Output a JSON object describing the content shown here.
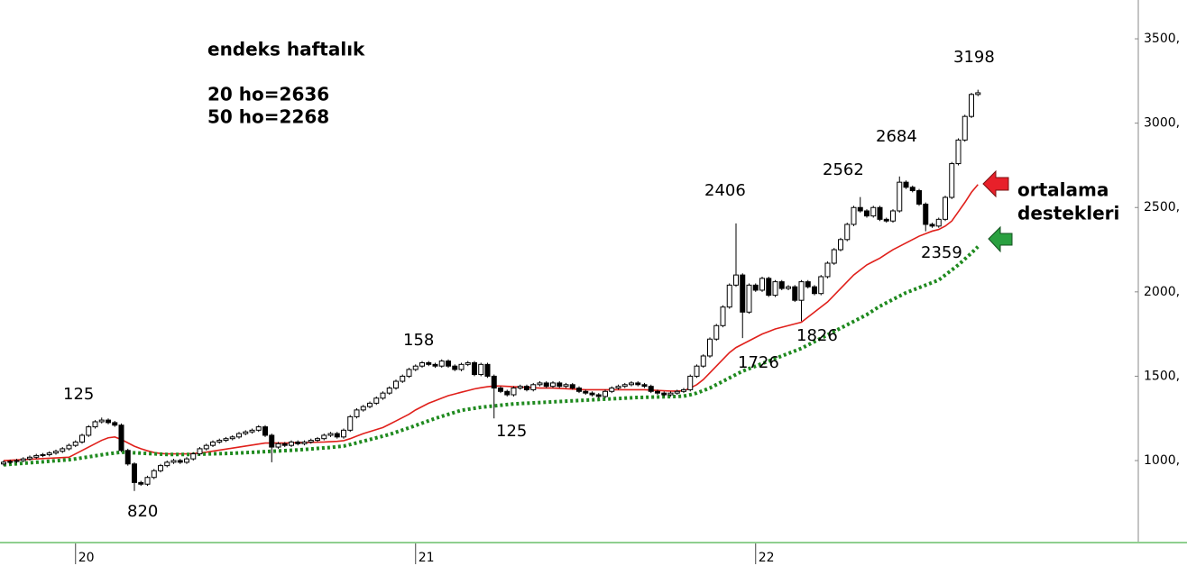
{
  "chart_data": {
    "type": "candlestick",
    "title": "endeks haftalık",
    "notes": [
      "20 ho=2636",
      "50 ho=2268"
    ],
    "side_label": [
      "ortalama",
      "destekleri"
    ],
    "annotations": [
      "125",
      "820",
      "158",
      "125",
      "2406",
      "1726",
      "1826",
      "2562",
      "2684",
      "2359",
      "3198"
    ],
    "categories": [
      null,
      null,
      null,
      null,
      null,
      null,
      null,
      null,
      null,
      null,
      null,
      "20",
      null,
      null,
      null,
      null,
      null,
      null,
      null,
      null,
      null,
      null,
      null,
      null,
      null,
      null,
      null,
      null,
      null,
      null,
      null,
      null,
      null,
      null,
      null,
      null,
      null,
      null,
      null,
      null,
      null,
      null,
      null,
      null,
      null,
      null,
      null,
      null,
      null,
      null,
      null,
      null,
      null,
      null,
      null,
      null,
      null,
      null,
      null,
      null,
      null,
      null,
      null,
      "21",
      null,
      null,
      null,
      null,
      null,
      null,
      null,
      null,
      null,
      null,
      null,
      null,
      null,
      null,
      null,
      null,
      null,
      null,
      null,
      null,
      null,
      null,
      null,
      null,
      null,
      null,
      null,
      null,
      null,
      null,
      null,
      null,
      null,
      null,
      null,
      null,
      null,
      null,
      null,
      null,
      null,
      null,
      null,
      null,
      null,
      null,
      null,
      null,
      null,
      null,
      null,
      "22",
      null,
      null,
      null,
      null,
      null,
      null,
      null,
      null,
      null,
      null,
      null,
      null,
      null,
      null,
      null,
      null,
      null,
      null,
      null,
      null,
      null,
      null,
      null,
      null,
      null,
      null,
      null,
      null,
      null,
      null,
      null,
      null,
      null,
      null
    ],
    "open": [
      980,
      990,
      995,
      1000,
      1010,
      1020,
      1030,
      1035,
      1045,
      1055,
      1070,
      1090,
      1110,
      1150,
      1200,
      1230,
      1240,
      1225,
      1210,
      1060,
      980,
      870,
      860,
      900,
      940,
      970,
      990,
      1000,
      990,
      1010,
      1040,
      1070,
      1090,
      1110,
      1120,
      1130,
      1140,
      1160,
      1170,
      1180,
      1200,
      1150,
      1080,
      1100,
      1090,
      1110,
      1100,
      1110,
      1120,
      1130,
      1150,
      1160,
      1140,
      1180,
      1260,
      1300,
      1320,
      1340,
      1370,
      1400,
      1430,
      1470,
      1500,
      1540,
      1560,
      1580,
      1570,
      1560,
      1590,
      1560,
      1540,
      1570,
      1580,
      1510,
      1570,
      1500,
      1430,
      1410,
      1390,
      1430,
      1440,
      1420,
      1450,
      1460,
      1440,
      1460,
      1440,
      1450,
      1430,
      1410,
      1400,
      1390,
      1380,
      1410,
      1430,
      1440,
      1450,
      1460,
      1450,
      1440,
      1410,
      1400,
      1390,
      1400,
      1410,
      1420,
      1500,
      1560,
      1620,
      1720,
      1800,
      1910,
      2040,
      2100,
      1880,
      2040,
      2010,
      2080,
      1980,
      2060,
      2020,
      2030,
      1950,
      2060,
      2030,
      1990,
      2090,
      2170,
      2250,
      2310,
      2400,
      2500,
      2480,
      2450,
      2500,
      2430,
      2420,
      2480,
      2650,
      2620,
      2600,
      2520,
      2400,
      2390,
      2430,
      2560,
      2760,
      2900,
      3040,
      3170
    ],
    "high": [
      1000,
      1005,
      1010,
      1020,
      1030,
      1040,
      1045,
      1055,
      1065,
      1080,
      1100,
      1120,
      1160,
      1210,
      1240,
      1255,
      1250,
      1235,
      1220,
      1070,
      990,
      880,
      910,
      950,
      980,
      1000,
      1010,
      1010,
      1020,
      1050,
      1080,
      1100,
      1120,
      1130,
      1140,
      1150,
      1170,
      1180,
      1190,
      1210,
      1210,
      1160,
      1110,
      1110,
      1120,
      1120,
      1120,
      1130,
      1140,
      1160,
      1170,
      1170,
      1190,
      1270,
      1310,
      1330,
      1350,
      1380,
      1410,
      1440,
      1480,
      1510,
      1550,
      1570,
      1590,
      1590,
      1580,
      1600,
      1600,
      1570,
      1580,
      1590,
      1590,
      1580,
      1580,
      1510,
      1440,
      1420,
      1440,
      1450,
      1450,
      1460,
      1470,
      1470,
      1470,
      1470,
      1460,
      1460,
      1440,
      1420,
      1410,
      1400,
      1420,
      1440,
      1450,
      1460,
      1470,
      1470,
      1460,
      1450,
      1420,
      1410,
      1410,
      1420,
      1430,
      1510,
      1570,
      1630,
      1730,
      1810,
      1920,
      2050,
      2406,
      2110,
      2050,
      2050,
      2090,
      2090,
      2070,
      2070,
      2040,
      2040,
      2070,
      2070,
      2040,
      2100,
      2180,
      2260,
      2320,
      2410,
      2510,
      2562,
      2490,
      2510,
      2510,
      2440,
      2490,
      2684,
      2660,
      2630,
      2610,
      2530,
      2410,
      2440,
      2570,
      2770,
      2910,
      3050,
      3180,
      3198
    ],
    "low": [
      970,
      980,
      985,
      990,
      1000,
      1010,
      1020,
      1025,
      1035,
      1045,
      1060,
      1080,
      1100,
      1140,
      1190,
      1220,
      1215,
      1200,
      1050,
      970,
      820,
      850,
      850,
      890,
      930,
      960,
      980,
      980,
      980,
      1000,
      1030,
      1060,
      1080,
      1100,
      1110,
      1120,
      1130,
      1150,
      1160,
      1170,
      1140,
      990,
      1070,
      1080,
      1080,
      1090,
      1090,
      1100,
      1110,
      1120,
      1140,
      1130,
      1130,
      1170,
      1250,
      1290,
      1310,
      1330,
      1360,
      1390,
      1420,
      1460,
      1490,
      1530,
      1550,
      1560,
      1550,
      1550,
      1550,
      1530,
      1530,
      1560,
      1500,
      1500,
      1490,
      1250,
      1400,
      1380,
      1380,
      1420,
      1410,
      1410,
      1440,
      1430,
      1430,
      1430,
      1430,
      1420,
      1400,
      1390,
      1380,
      1370,
      1370,
      1400,
      1420,
      1430,
      1440,
      1440,
      1430,
      1400,
      1390,
      1380,
      1380,
      1390,
      1400,
      1410,
      1490,
      1550,
      1610,
      1710,
      1790,
      1900,
      2030,
      1726,
      1870,
      2000,
      2000,
      1970,
      1970,
      2010,
      2010,
      1940,
      1826,
      2020,
      1980,
      1980,
      2080,
      2160,
      2240,
      2300,
      2390,
      2470,
      2440,
      2440,
      2420,
      2410,
      2410,
      2470,
      2610,
      2590,
      2510,
      2359,
      2380,
      2380,
      2420,
      2550,
      2750,
      2890,
      3030,
      3160
    ],
    "close": [
      990,
      995,
      1000,
      1010,
      1020,
      1030,
      1035,
      1045,
      1055,
      1070,
      1090,
      1110,
      1150,
      1200,
      1230,
      1240,
      1225,
      1210,
      1060,
      980,
      870,
      860,
      900,
      940,
      970,
      990,
      1000,
      990,
      1010,
      1040,
      1070,
      1090,
      1110,
      1120,
      1130,
      1140,
      1160,
      1170,
      1180,
      1200,
      1150,
      1080,
      1100,
      1090,
      1110,
      1100,
      1110,
      1120,
      1130,
      1150,
      1160,
      1140,
      1180,
      1260,
      1300,
      1320,
      1340,
      1370,
      1400,
      1430,
      1470,
      1500,
      1540,
      1560,
      1580,
      1570,
      1560,
      1590,
      1560,
      1540,
      1570,
      1580,
      1510,
      1570,
      1500,
      1430,
      1410,
      1390,
      1430,
      1440,
      1420,
      1450,
      1460,
      1440,
      1460,
      1440,
      1450,
      1430,
      1410,
      1400,
      1390,
      1380,
      1410,
      1430,
      1440,
      1450,
      1460,
      1450,
      1440,
      1410,
      1400,
      1390,
      1400,
      1410,
      1420,
      1500,
      1560,
      1620,
      1720,
      1800,
      1910,
      2040,
      2100,
      1880,
      2040,
      2010,
      2080,
      1980,
      2060,
      2020,
      2030,
      1950,
      2060,
      2030,
      1990,
      2090,
      2170,
      2250,
      2310,
      2400,
      2500,
      2480,
      2450,
      2500,
      2430,
      2420,
      2480,
      2650,
      2620,
      2600,
      2520,
      2400,
      2390,
      2430,
      2560,
      2760,
      2900,
      3040,
      3170,
      3180
    ],
    "up_color": "#ffffff",
    "down_color": "#000000",
    "lines": [
      {
        "color": "#e0201b",
        "style": "solid",
        "values": [
          1000,
          1002,
          1004,
          1006,
          1008,
          1010,
          1012,
          1014,
          1016,
          1018,
          1020,
          1040,
          1060,
          1080,
          1100,
          1120,
          1135,
          1140,
          1125,
          1105,
          1085,
          1070,
          1058,
          1048,
          1042,
          1040,
          1040,
          1040,
          1040,
          1042,
          1045,
          1050,
          1056,
          1062,
          1068,
          1074,
          1080,
          1086,
          1092,
          1098,
          1104,
          1104,
          1104,
          1104,
          1105,
          1106,
          1107,
          1108,
          1109,
          1110,
          1112,
          1114,
          1118,
          1130,
          1145,
          1160,
          1172,
          1184,
          1196,
          1215,
          1235,
          1255,
          1275,
          1300,
          1320,
          1340,
          1355,
          1370,
          1385,
          1395,
          1405,
          1415,
          1425,
          1432,
          1438,
          1442,
          1442,
          1440,
          1438,
          1436,
          1434,
          1432,
          1430,
          1430,
          1430,
          1428,
          1426,
          1424,
          1422,
          1420,
          1420,
          1420,
          1420,
          1420,
          1420,
          1420,
          1420,
          1420,
          1420,
          1418,
          1416,
          1414,
          1412,
          1412,
          1414,
          1430,
          1450,
          1480,
          1520,
          1560,
          1600,
          1640,
          1670,
          1690,
          1710,
          1730,
          1750,
          1765,
          1780,
          1790,
          1800,
          1810,
          1820,
          1850,
          1880,
          1910,
          1940,
          1980,
          2020,
          2060,
          2100,
          2130,
          2160,
          2180,
          2200,
          2225,
          2250,
          2270,
          2290,
          2310,
          2330,
          2345,
          2360,
          2370,
          2390,
          2420,
          2475,
          2530,
          2590,
          2636
        ]
      },
      {
        "color": "#1f8a1f",
        "style": "dotted",
        "values": [
          975,
          978,
          981,
          984,
          987,
          990,
          993,
          996,
          999,
          1002,
          1005,
          1010,
          1016,
          1022,
          1028,
          1034,
          1040,
          1045,
          1050,
          1048,
          1046,
          1044,
          1042,
          1040,
          1038,
          1036,
          1036,
          1036,
          1036,
          1037,
          1038,
          1039,
          1040,
          1041,
          1042,
          1043,
          1045,
          1047,
          1049,
          1051,
          1053,
          1055,
          1057,
          1059,
          1061,
          1063,
          1066,
          1069,
          1072,
          1075,
          1078,
          1082,
          1086,
          1095,
          1105,
          1115,
          1125,
          1135,
          1145,
          1155,
          1168,
          1181,
          1194,
          1208,
          1222,
          1236,
          1250,
          1262,
          1274,
          1286,
          1298,
          1304,
          1310,
          1316,
          1320,
          1324,
          1328,
          1332,
          1336,
          1338,
          1340,
          1342,
          1344,
          1346,
          1348,
          1350,
          1352,
          1354,
          1356,
          1358,
          1360,
          1362,
          1364,
          1366,
          1368,
          1370,
          1372,
          1374,
          1375,
          1376,
          1377,
          1378,
          1379,
          1380,
          1382,
          1390,
          1400,
          1415,
          1430,
          1450,
          1470,
          1490,
          1510,
          1530,
          1545,
          1560,
          1575,
          1590,
          1605,
          1620,
          1635,
          1650,
          1665,
          1685,
          1705,
          1725,
          1745,
          1765,
          1785,
          1805,
          1825,
          1845,
          1865,
          1890,
          1915,
          1935,
          1955,
          1975,
          1995,
          2010,
          2025,
          2040,
          2055,
          2070,
          2100,
          2130,
          2160,
          2195,
          2230,
          2268
        ]
      }
    ],
    "ylim": [
      514,
      3730
    ],
    "yticks": [
      {
        "value": 1000,
        "label": "1000,"
      },
      {
        "value": 1500,
        "label": "1500,"
      },
      {
        "value": 2000,
        "label": "2000,"
      },
      {
        "value": 2500,
        "label": "2500,"
      },
      {
        "value": 3000,
        "label": "3000,"
      },
      {
        "value": 3500,
        "label": "3500,"
      }
    ]
  }
}
